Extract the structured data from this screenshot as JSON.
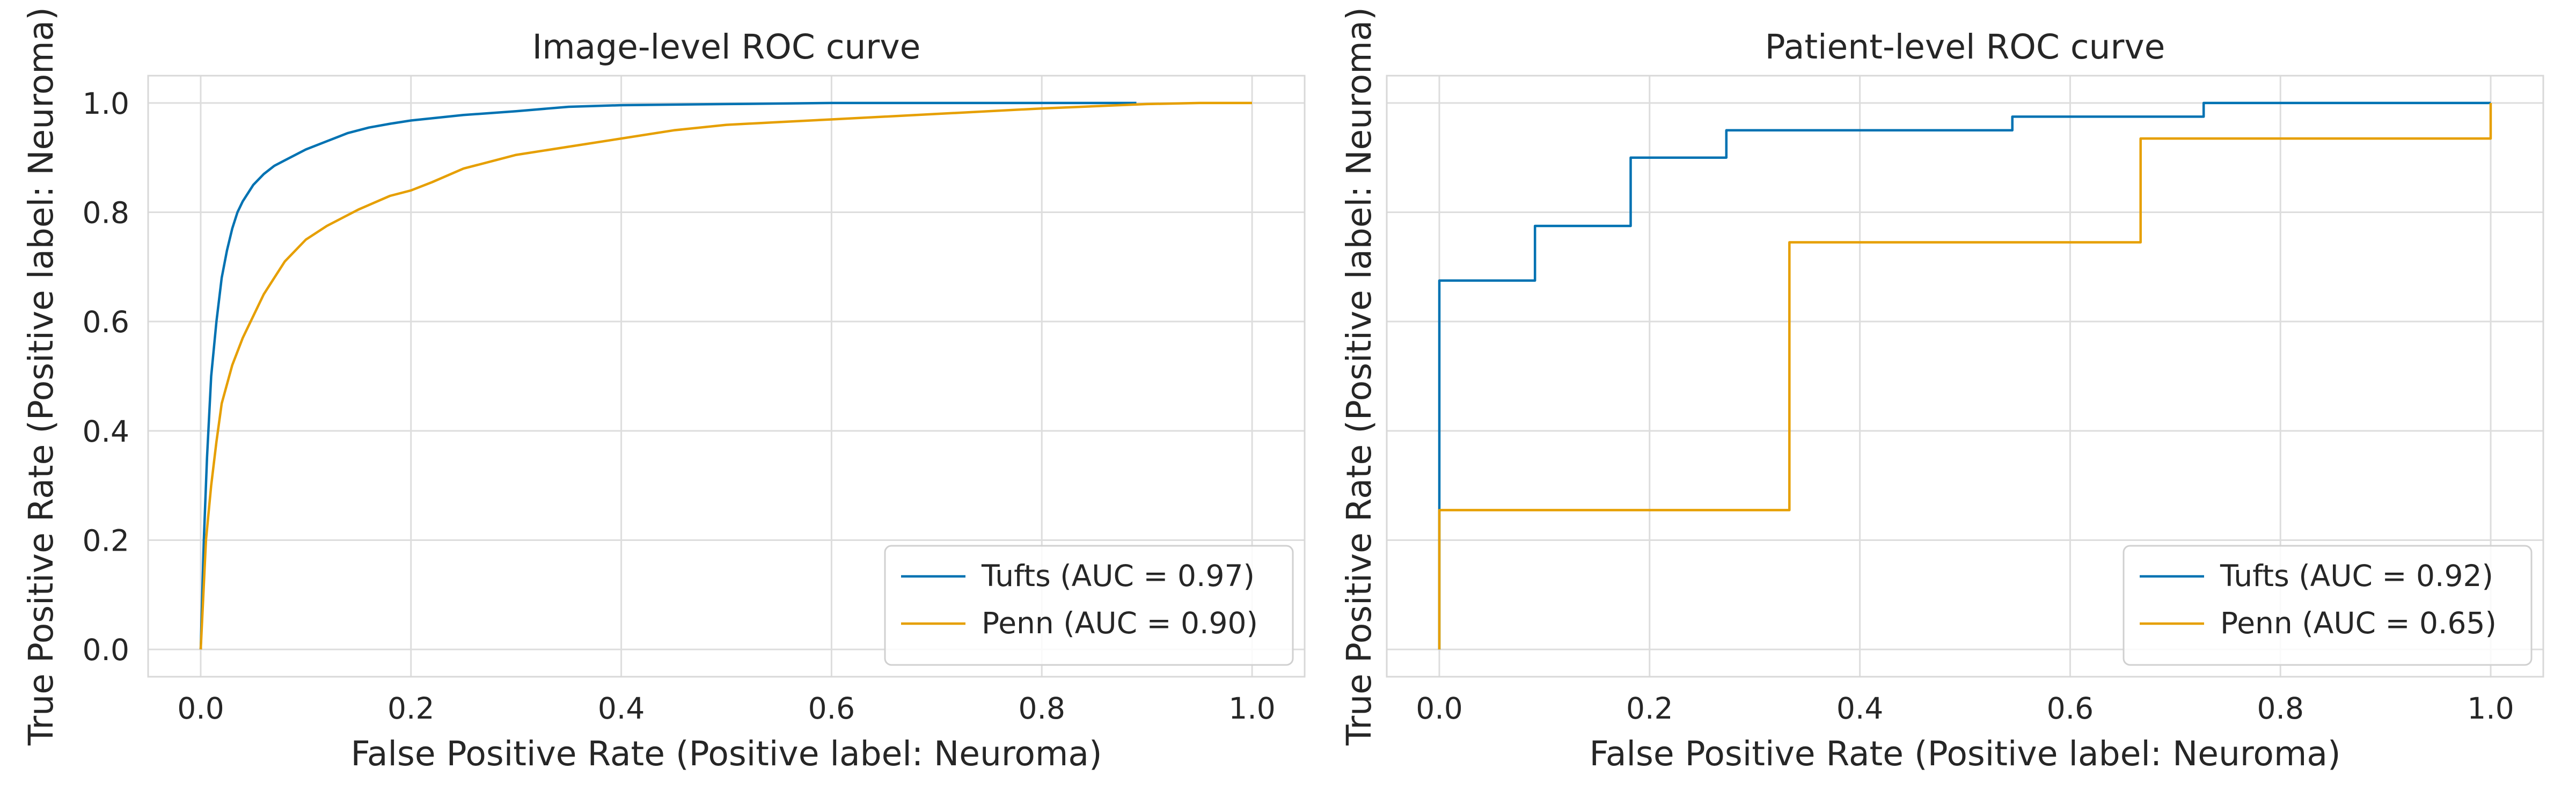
{
  "chart_data": [
    {
      "type": "line",
      "title": "Image-level ROC curve",
      "xlabel": "False Positive Rate (Positive label: Neuroma)",
      "ylabel": "True Positive Rate (Positive label: Neuroma)",
      "xlim": [
        -0.05,
        1.05
      ],
      "ylim": [
        -0.05,
        1.05
      ],
      "xticks": [
        "0.0",
        "0.2",
        "0.4",
        "0.6",
        "0.8",
        "1.0"
      ],
      "yticks": [
        "0.0",
        "0.2",
        "0.4",
        "0.6",
        "0.8",
        "1.0"
      ],
      "show_y_tick_labels": true,
      "grid": true,
      "legend_position": "lower-right",
      "series": [
        {
          "name": "Tufts (AUC = 0.97)",
          "color": "#0072b2",
          "step": false,
          "x": [
            0,
            0.003,
            0.006,
            0.01,
            0.015,
            0.02,
            0.025,
            0.03,
            0.035,
            0.04,
            0.05,
            0.06,
            0.07,
            0.08,
            0.1,
            0.12,
            0.14,
            0.16,
            0.18,
            0.2,
            0.25,
            0.3,
            0.35,
            0.4,
            0.5,
            0.6,
            0.7,
            0.8,
            0.89
          ],
          "y": [
            0,
            0.2,
            0.35,
            0.5,
            0.6,
            0.68,
            0.73,
            0.77,
            0.8,
            0.82,
            0.85,
            0.87,
            0.885,
            0.895,
            0.915,
            0.93,
            0.945,
            0.955,
            0.962,
            0.968,
            0.978,
            0.985,
            0.993,
            0.996,
            0.998,
            1.0,
            1.0,
            1.0,
            1.0
          ]
        },
        {
          "name": "Penn (AUC = 0.90)",
          "color": "#e69f00",
          "step": false,
          "x": [
            0,
            0.005,
            0.01,
            0.015,
            0.02,
            0.03,
            0.04,
            0.05,
            0.06,
            0.07,
            0.08,
            0.1,
            0.12,
            0.15,
            0.18,
            0.2,
            0.22,
            0.25,
            0.3,
            0.35,
            0.4,
            0.45,
            0.5,
            0.55,
            0.6,
            0.7,
            0.8,
            0.9,
            0.95,
            1.0
          ],
          "y": [
            0,
            0.2,
            0.3,
            0.38,
            0.45,
            0.52,
            0.57,
            0.61,
            0.65,
            0.68,
            0.71,
            0.75,
            0.775,
            0.805,
            0.83,
            0.84,
            0.855,
            0.88,
            0.905,
            0.92,
            0.935,
            0.95,
            0.96,
            0.965,
            0.97,
            0.98,
            0.99,
            0.998,
            1.0,
            1.0
          ]
        }
      ]
    },
    {
      "type": "line",
      "title": "Patient-level ROC curve",
      "xlabel": "False Positive Rate (Positive label: Neuroma)",
      "ylabel": "True Positive Rate (Positive label: Neuroma)",
      "xlim": [
        -0.05,
        1.05
      ],
      "ylim": [
        -0.05,
        1.05
      ],
      "xticks": [
        "0.0",
        "0.2",
        "0.4",
        "0.6",
        "0.8",
        "1.0"
      ],
      "yticks": [
        "0.0",
        "0.2",
        "0.4",
        "0.6",
        "0.8",
        "1.0"
      ],
      "show_y_tick_labels": false,
      "grid": true,
      "legend_position": "lower-right",
      "series": [
        {
          "name": "Tufts (AUC = 0.92)",
          "color": "#0072b2",
          "step": true,
          "x": [
            0,
            0,
            0.091,
            0.091,
            0.182,
            0.182,
            0.273,
            0.273,
            0.545,
            0.545,
            0.727,
            0.727,
            1.0
          ],
          "y": [
            0,
            0.675,
            0.675,
            0.775,
            0.775,
            0.9,
            0.9,
            0.95,
            0.95,
            0.975,
            0.975,
            1.0,
            1.0
          ]
        },
        {
          "name": "Penn (AUC = 0.65)",
          "color": "#e69f00",
          "step": true,
          "x": [
            0,
            0,
            0.333,
            0.333,
            0.667,
            0.667,
            1.0,
            1.0
          ],
          "y": [
            0,
            0.255,
            0.255,
            0.745,
            0.745,
            0.935,
            0.935,
            1.0
          ]
        }
      ]
    }
  ]
}
